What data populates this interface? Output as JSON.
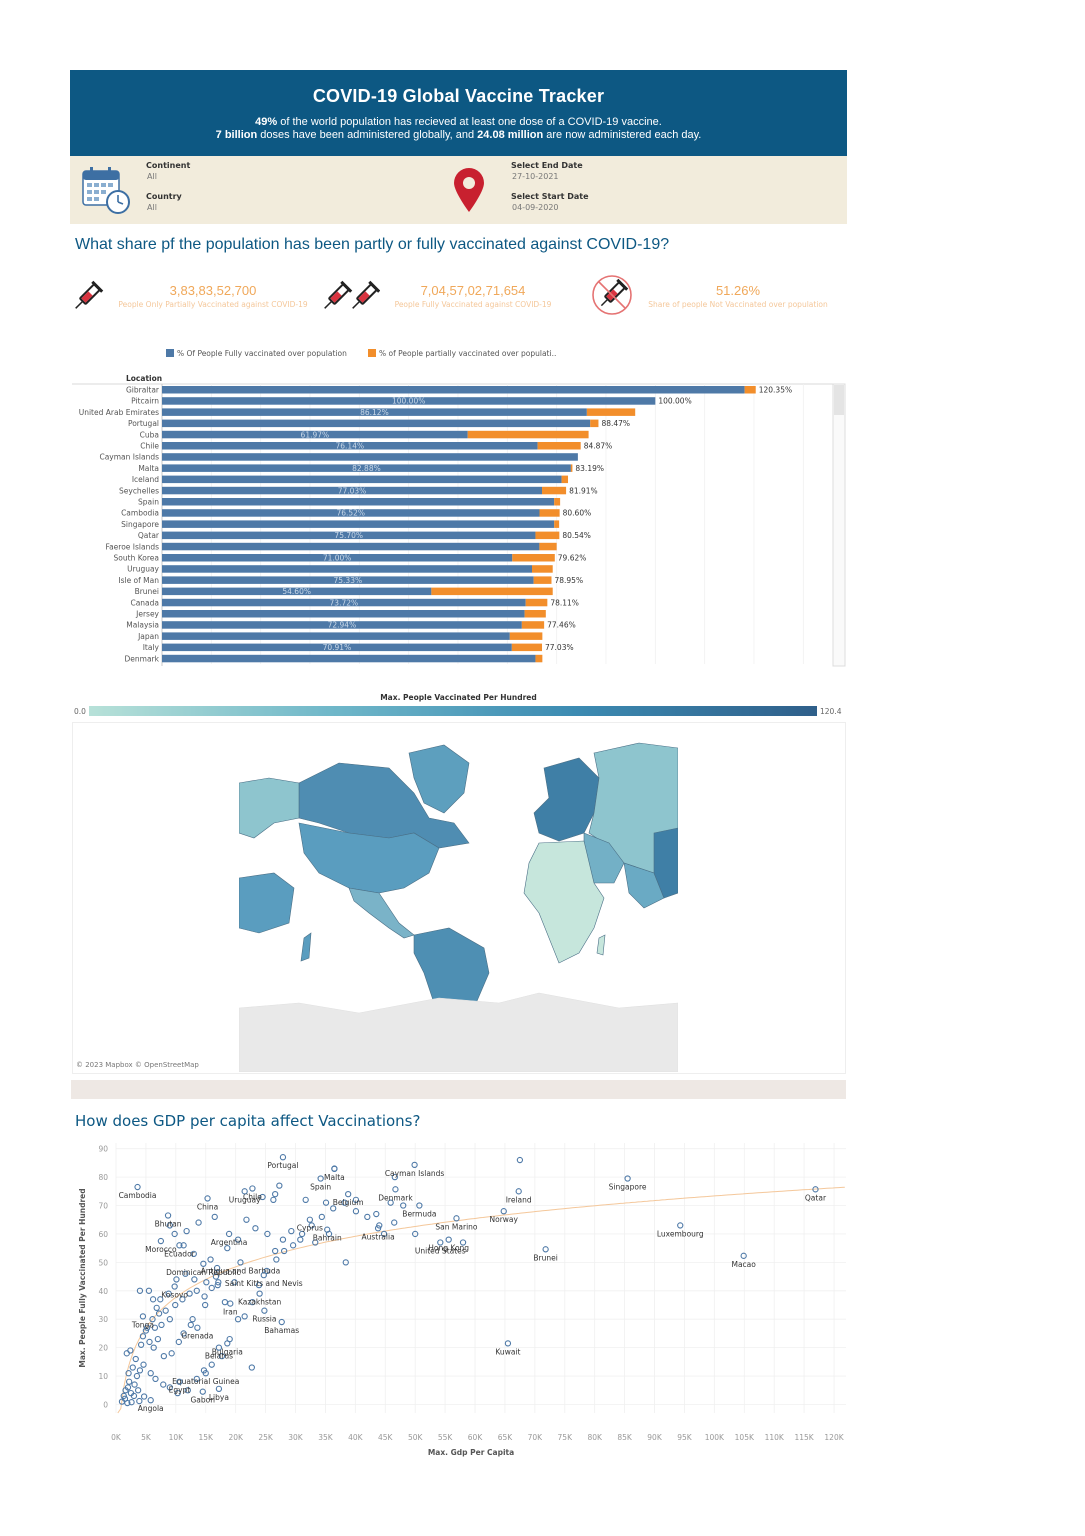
{
  "header": {
    "title": "COVID-19 Global Vaccine Tracker",
    "line1_bold": "49%",
    "line1_rest": " of the world population has recieved at least one dose of a COVID-19 vaccine.",
    "line2_bold1": "7 billion",
    "line2_mid": " doses have been administered globally, and ",
    "line2_bold2": "24.08 million",
    "line2_end": " are now administered each day."
  },
  "filters": {
    "continent_label": "Continent",
    "continent_value": "All",
    "country_label": "Country",
    "country_value": "All",
    "end_label": "Select End Date",
    "end_value": "27-10-2021",
    "start_label": "Select Start Date",
    "start_value": "04-09-2020"
  },
  "question1": "What share pf the population has been partly or fully vaccinated against COVID-19?",
  "kpis": [
    {
      "value": "3,83,83,52,700",
      "label": "People Only Partially Vaccinated against COVID-19"
    },
    {
      "value": "7,04,57,02,71,654",
      "label": "People Fully  Vaccinated against COVID-19"
    },
    {
      "value": "51.26%",
      "label": "Share of people Not Vaccinated over population"
    }
  ],
  "icons": [
    "syringe-icon",
    "double-syringe-icon",
    "no-syringe-icon",
    "calendar-clock-icon",
    "map-pin-icon"
  ],
  "colors": {
    "header": "#0d5883",
    "filters_bg": "#f2ecdc",
    "full": "#4e79a7",
    "partial": "#f28e2b",
    "kpi": "#f0a85a",
    "scatter": "#4e79a7",
    "trend": "#f4c79a"
  },
  "chart_data": [
    {
      "type": "bar",
      "stacked": true,
      "orientation": "horizontal",
      "legend": [
        "% Of People Fully vaccinated over population",
        "% of People partially vaccinated over populati.."
      ],
      "legend_position": "top",
      "ylabel": "Location",
      "categories": [
        "Gibraltar",
        "Pitcairn",
        "United Arab Emirates",
        "Portugal",
        "Cuba",
        "Chile",
        "Cayman Islands",
        "Malta",
        "Iceland",
        "Seychelles",
        "Spain",
        "Cambodia",
        "Singapore",
        "Qatar",
        "Faeroe Islands",
        "South Korea",
        "Uruguay",
        "Isle of Man",
        "Brunei",
        "Canada",
        "Jersey",
        "Malaysia",
        "Japan",
        "Italy",
        "Denmark"
      ],
      "series": [
        {
          "name": "% Of People Fully vaccinated over population",
          "values": [
            118.1,
            100.0,
            86.12,
            86.8,
            61.97,
            76.14,
            84.3,
            82.88,
            81.0,
            77.03,
            79.5,
            76.52,
            79.5,
            75.7,
            76.5,
            71.0,
            75.0,
            75.33,
            54.6,
            73.72,
            73.5,
            72.94,
            70.5,
            70.91,
            75.7
          ]
        },
        {
          "name": "% of People partially vaccinated over populati..",
          "values": [
            2.25,
            0.0,
            9.8,
            1.67,
            24.5,
            8.73,
            0.0,
            0.31,
            1.3,
            4.88,
            1.2,
            4.08,
            1.0,
            4.84,
            3.5,
            8.62,
            4.2,
            3.62,
            24.6,
            4.39,
            4.3,
            4.52,
            6.6,
            6.12,
            1.4
          ]
        }
      ],
      "totals": [
        "120.35%",
        "100.00%",
        "",
        "88.47%",
        "",
        "84.87%",
        "",
        "83.19%",
        "",
        "81.91%",
        "",
        "80.60%",
        "",
        "80.54%",
        "",
        "79.62%",
        "",
        "78.95%",
        "",
        "78.11%",
        "",
        "77.46%",
        "",
        "77.03%",
        ""
      ],
      "inner_labels": [
        "",
        "100.00%",
        "86.12%",
        "",
        "61.97%",
        "76.14%",
        "",
        "82.88%",
        "",
        "77.03%",
        "",
        "76.52%",
        "",
        "75.70%",
        "",
        "71.00%",
        "",
        "75.33%",
        "54.60%",
        "73.72%",
        "",
        "72.94%",
        "",
        "70.91%",
        ""
      ],
      "xlim": [
        0,
        135
      ]
    },
    {
      "type": "heatmap",
      "title": "Max. People Vaccinated Per Hundred",
      "range": [
        0.0,
        120.4
      ],
      "range_labels": [
        "0.0",
        "120.4"
      ],
      "attribution": "© 2023 Mapbox © OpenStreetMap"
    },
    {
      "type": "scatter",
      "title": "How does GDP per capita affect Vaccinations?",
      "xlabel": "Max. Gdp Per Capita",
      "ylabel": "Max. People Fully Vaccinated Per Hundred",
      "xlim": [
        0,
        122000
      ],
      "ylim": [
        -3,
        92
      ],
      "xticks": [
        "0K",
        "5K",
        "10K",
        "15K",
        "20K",
        "25K",
        "30K",
        "35K",
        "40K",
        "45K",
        "50K",
        "55K",
        "60K",
        "65K",
        "70K",
        "75K",
        "80K",
        "85K",
        "90K",
        "95K",
        "100K",
        "105K",
        "110K",
        "115K",
        "120K"
      ],
      "yticks": [
        "0",
        "10",
        "20",
        "30",
        "40",
        "50",
        "60",
        "70",
        "80",
        "90"
      ],
      "labeled_points": [
        {
          "name": "Portugal",
          "x": 27900,
          "y": 87
        },
        {
          "name": "Malta",
          "x": 36500,
          "y": 82.9
        },
        {
          "name": "Cayman Islands",
          "x": 49900,
          "y": 84.3
        },
        {
          "name": "Chile",
          "x": 22800,
          "y": 76
        },
        {
          "name": "Spain",
          "x": 34200,
          "y": 79.5
        },
        {
          "name": "Belgium",
          "x": 38800,
          "y": 74
        },
        {
          "name": "Denmark",
          "x": 46700,
          "y": 75.7
        },
        {
          "name": "Singapore",
          "x": 85500,
          "y": 79.5
        },
        {
          "name": "Qatar",
          "x": 116900,
          "y": 75.7
        },
        {
          "name": "Cambodia",
          "x": 3600,
          "y": 76.5
        },
        {
          "name": "China",
          "x": 15300,
          "y": 72.5
        },
        {
          "name": "Uruguay",
          "x": 21500,
          "y": 75
        },
        {
          "name": "Ireland",
          "x": 67300,
          "y": 75
        },
        {
          "name": "Bermuda",
          "x": 50700,
          "y": 70
        },
        {
          "name": "Cyprus",
          "x": 32400,
          "y": 65
        },
        {
          "name": "San Marino",
          "x": 56900,
          "y": 65.5
        },
        {
          "name": "Norway",
          "x": 64800,
          "y": 68
        },
        {
          "name": "Bhutan",
          "x": 8700,
          "y": 66.5
        },
        {
          "name": "Bahrain",
          "x": 35300,
          "y": 61.5
        },
        {
          "name": "Luxembourg",
          "x": 94300,
          "y": 63
        },
        {
          "name": "Morocco",
          "x": 7500,
          "y": 57.5
        },
        {
          "name": "Argentina",
          "x": 18900,
          "y": 60
        },
        {
          "name": "Australia",
          "x": 43800,
          "y": 62
        },
        {
          "name": "Hong Kong",
          "x": 55600,
          "y": 58
        },
        {
          "name": "Ecuador",
          "x": 10600,
          "y": 56
        },
        {
          "name": "United States",
          "x": 54200,
          "y": 57
        },
        {
          "name": "Brunei",
          "x": 71800,
          "y": 54.6
        },
        {
          "name": "Macao",
          "x": 104900,
          "y": 52.3
        },
        {
          "name": "Dominican Republic",
          "x": 14600,
          "y": 49.5
        },
        {
          "name": "Antigua and Barbuda",
          "x": 20800,
          "y": 50
        },
        {
          "name": "Saint Kitts and Nevis",
          "x": 24700,
          "y": 45.5
        },
        {
          "name": "Kosovo",
          "x": 9800,
          "y": 41.5
        },
        {
          "name": "Kazakhstan",
          "x": 24000,
          "y": 39
        },
        {
          "name": "Tonga",
          "x": 4500,
          "y": 31
        },
        {
          "name": "Iran",
          "x": 19100,
          "y": 35.5
        },
        {
          "name": "Russia",
          "x": 24800,
          "y": 33
        },
        {
          "name": "Grenada",
          "x": 13600,
          "y": 27
        },
        {
          "name": "Bahamas",
          "x": 27700,
          "y": 29
        },
        {
          "name": "Bulgaria",
          "x": 18600,
          "y": 21.5
        },
        {
          "name": "Kuwait",
          "x": 65500,
          "y": 21.5
        },
        {
          "name": "Belarus",
          "x": 17200,
          "y": 20
        },
        {
          "name": "Equatorial Guinea",
          "x": 15000,
          "y": 11
        },
        {
          "name": "Egypt",
          "x": 10600,
          "y": 8
        },
        {
          "name": "Libya",
          "x": 17200,
          "y": 5.5
        },
        {
          "name": "Angola",
          "x": 5800,
          "y": 1.5
        },
        {
          "name": "Gabon",
          "x": 14500,
          "y": 4.5
        }
      ],
      "other_points": [
        [
          2000,
          6
        ],
        [
          2500,
          4
        ],
        [
          3000,
          3
        ],
        [
          1500,
          2
        ],
        [
          2200,
          8
        ],
        [
          3500,
          10
        ],
        [
          4000,
          12
        ],
        [
          2800,
          13
        ],
        [
          3300,
          16
        ],
        [
          1800,
          18
        ],
        [
          2400,
          19
        ],
        [
          4200,
          21
        ],
        [
          5600,
          22
        ],
        [
          6300,
          20
        ],
        [
          7000,
          23
        ],
        [
          8000,
          17
        ],
        [
          9300,
          18
        ],
        [
          10500,
          22
        ],
        [
          11300,
          25
        ],
        [
          12500,
          28
        ],
        [
          9000,
          30
        ],
        [
          7600,
          28
        ],
        [
          6500,
          27
        ],
        [
          5000,
          26
        ],
        [
          4500,
          24
        ],
        [
          6800,
          34
        ],
        [
          8300,
          33
        ],
        [
          9900,
          35
        ],
        [
          11100,
          37
        ],
        [
          12300,
          39
        ],
        [
          13500,
          40
        ],
        [
          14800,
          38
        ],
        [
          16000,
          41
        ],
        [
          17000,
          42
        ],
        [
          18200,
          36
        ],
        [
          7400,
          37
        ],
        [
          8800,
          39
        ],
        [
          10100,
          44
        ],
        [
          11600,
          46
        ],
        [
          13100,
          44
        ],
        [
          15100,
          43
        ],
        [
          16700,
          45
        ],
        [
          4000,
          40
        ],
        [
          5500,
          40
        ],
        [
          6200,
          37
        ],
        [
          7200,
          32
        ],
        [
          6100,
          30
        ],
        [
          5200,
          27
        ],
        [
          4600,
          14
        ],
        [
          5800,
          11
        ],
        [
          6600,
          9
        ],
        [
          7900,
          7
        ],
        [
          9000,
          6
        ],
        [
          10300,
          4
        ],
        [
          12000,
          5
        ],
        [
          13500,
          9
        ],
        [
          14700,
          12
        ],
        [
          16000,
          14
        ],
        [
          17700,
          17
        ],
        [
          19000,
          23
        ],
        [
          20400,
          30
        ],
        [
          21500,
          31
        ],
        [
          22800,
          36
        ],
        [
          23900,
          42
        ],
        [
          25200,
          47
        ],
        [
          26800,
          51
        ],
        [
          28100,
          54
        ],
        [
          29600,
          56
        ],
        [
          31100,
          60
        ],
        [
          32700,
          63
        ],
        [
          34400,
          66
        ],
        [
          36300,
          69
        ],
        [
          38200,
          71
        ],
        [
          40100,
          72
        ],
        [
          42000,
          66
        ],
        [
          44000,
          63
        ],
        [
          46500,
          64
        ],
        [
          48000,
          70
        ],
        [
          16900,
          48
        ],
        [
          15800,
          51
        ],
        [
          18600,
          55
        ],
        [
          20400,
          58
        ],
        [
          21800,
          65
        ],
        [
          23300,
          62
        ],
        [
          25300,
          60
        ],
        [
          26600,
          54
        ],
        [
          27900,
          58
        ],
        [
          29300,
          61
        ],
        [
          30800,
          58
        ],
        [
          33300,
          57
        ],
        [
          13000,
          53
        ],
        [
          11300,
          56
        ],
        [
          9800,
          60
        ],
        [
          9000,
          63
        ],
        [
          11800,
          61
        ],
        [
          13800,
          64
        ],
        [
          16500,
          66
        ],
        [
          26300,
          72
        ],
        [
          24500,
          73
        ],
        [
          31700,
          72
        ],
        [
          35100,
          71
        ],
        [
          40100,
          68
        ],
        [
          43500,
          67
        ],
        [
          45900,
          71
        ],
        [
          1000,
          1
        ],
        [
          1300,
          3
        ],
        [
          1900,
          0.5
        ],
        [
          2600,
          0.8
        ],
        [
          3900,
          1.2
        ],
        [
          4700,
          2.8
        ],
        [
          2100,
          11
        ],
        [
          3100,
          7
        ],
        [
          3700,
          5
        ],
        [
          1600,
          5
        ],
        [
          22700,
          13
        ],
        [
          38400,
          50
        ],
        [
          35600,
          60
        ],
        [
          44800,
          60
        ],
        [
          50000,
          60
        ],
        [
          58000,
          57
        ],
        [
          26600,
          74
        ],
        [
          27300,
          77
        ],
        [
          36500,
          83
        ],
        [
          46600,
          80
        ],
        [
          67500,
          86
        ],
        [
          12800,
          30
        ],
        [
          14900,
          35
        ],
        [
          17100,
          43
        ],
        [
          19800,
          43
        ]
      ],
      "trend_label": "logarithmic trend"
    }
  ]
}
